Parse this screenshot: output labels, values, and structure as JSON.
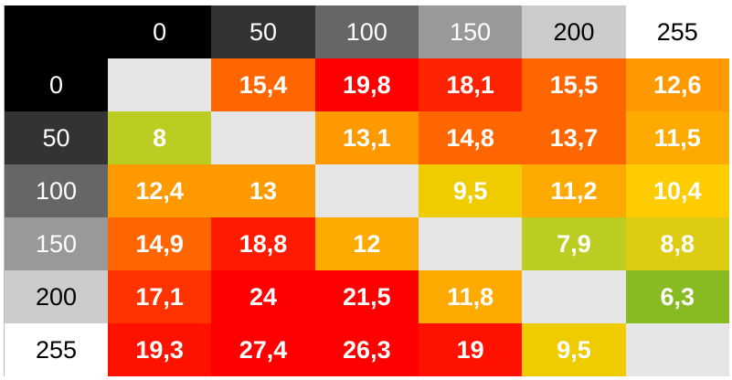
{
  "chart_data": {
    "type": "heatmap",
    "categories_x": [
      "0",
      "50",
      "100",
      "150",
      "200",
      "255"
    ],
    "categories_y": [
      "0",
      "50",
      "100",
      "150",
      "200",
      "255"
    ],
    "header_colors": [
      "#000000",
      "#333333",
      "#666666",
      "#999999",
      "#cccccc",
      "#ffffff"
    ],
    "header_text_colors": [
      "#ffffff",
      "#ffffff",
      "#ffffff",
      "#ffffff",
      "#000000",
      "#000000"
    ],
    "empty_color": "#e6e6e6",
    "values": [
      [
        null,
        "15,4",
        "19,8",
        "18,1",
        "15,5",
        "12,6"
      ],
      [
        "8",
        null,
        "13,1",
        "14,8",
        "13,7",
        "11,5"
      ],
      [
        "12,4",
        "13",
        null,
        "9,5",
        "11,2",
        "10,4"
      ],
      [
        "14,9",
        "18,8",
        "12",
        null,
        "7,9",
        "8,8"
      ],
      [
        "17,1",
        "24",
        "21,5",
        "11,8",
        null,
        "6,3"
      ],
      [
        "19,3",
        "27,4",
        "26,3",
        "19",
        "9,5",
        null
      ]
    ],
    "cell_colors": [
      [
        "#e6e6e6",
        "#ff6600",
        "#ff0000",
        "#ff2200",
        "#ff6600",
        "#ff9900"
      ],
      [
        "#bbcc22",
        "#e6e6e6",
        "#ff9900",
        "#ff6600",
        "#ff6600",
        "#ffaa00"
      ],
      [
        "#ff9900",
        "#ff9900",
        "#e6e6e6",
        "#eecc00",
        "#ffaa00",
        "#ffcc00"
      ],
      [
        "#ff6600",
        "#ff1a00",
        "#ffaa00",
        "#e6e6e6",
        "#bbcc22",
        "#ddcc11"
      ],
      [
        "#ff3300",
        "#ff0000",
        "#ff0000",
        "#ffaa00",
        "#e6e6e6",
        "#88bb22"
      ],
      [
        "#ff1100",
        "#ff0000",
        "#ff0000",
        "#ff1100",
        "#eecc00",
        "#e6e6e6"
      ]
    ]
  }
}
